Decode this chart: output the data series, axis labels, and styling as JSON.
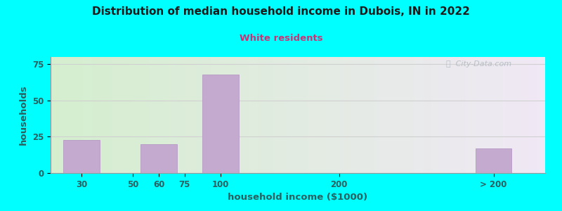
{
  "title": "Distribution of median household income in Dubois, IN in 2022",
  "subtitle": "White residents",
  "xlabel": "household income ($1000)",
  "ylabel": "households",
  "background_color": "#00FFFF",
  "plot_bg_gradient_left": "#d4eece",
  "plot_bg_gradient_right": "#f0e8f5",
  "bar_color": "#c5aad0",
  "bar_edge_color": "#b090c0",
  "title_color": "#1a1a1a",
  "subtitle_color": "#cc3377",
  "axis_label_color": "#2a6060",
  "tick_label_color": "#2a6060",
  "yticks": [
    0,
    25,
    50,
    75
  ],
  "ylim": [
    0,
    80
  ],
  "grid_color": "#d0d0d0",
  "watermark": "ⓘ  City-Data.com",
  "watermark_color": "#b0b8c0",
  "categories": [
    "30",
    "50",
    "60",
    "75",
    "100",
    "200",
    "> 200"
  ],
  "values": [
    23,
    0,
    20,
    0,
    68,
    0,
    17
  ],
  "x_positions": [
    0.5,
    1.5,
    2.0,
    2.5,
    3.2,
    5.5,
    8.5
  ],
  "bar_width": 0.7,
  "xlim": [
    -0.1,
    9.5
  ]
}
